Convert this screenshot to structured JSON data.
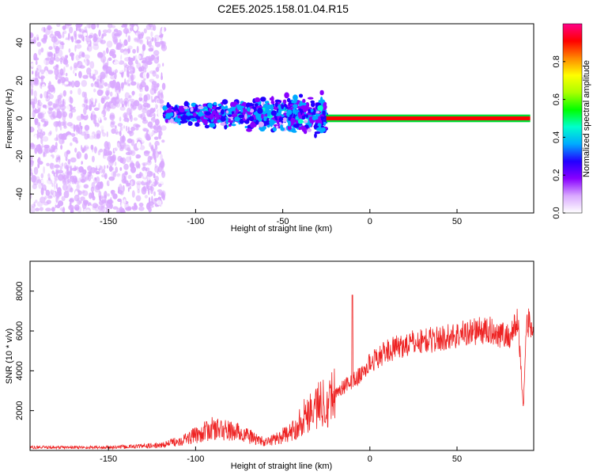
{
  "title": "C2E5.2025.158.01.04.R15",
  "chart_data": [
    {
      "type": "heatmap",
      "xlabel": "Height of straight line (km)",
      "ylabel": "Frequency (Hz)",
      "xlim": [
        -195,
        94
      ],
      "ylim": [
        -50,
        50
      ],
      "x_ticks": [
        -150,
        -100,
        -50,
        0,
        50
      ],
      "y_ticks": [
        -40,
        -20,
        0,
        20,
        40
      ],
      "colorbar": {
        "label": "Normalized spectral amplitude",
        "range": [
          0.0,
          1.0
        ],
        "ticks": [
          "0.0",
          "0.2",
          "0.4",
          "0.6",
          "0.8"
        ],
        "colors": [
          "#ffffff",
          "#d9a8ff",
          "#8800ff",
          "#2200ff",
          "#00aaff",
          "#00ffcc",
          "#00ff00",
          "#aaff00",
          "#ffff00",
          "#ff8800",
          "#ff0000",
          "#ff0088"
        ]
      },
      "regions": [
        {
          "x_range": [
            -195,
            -118
          ],
          "freq_range": [
            -50,
            50
          ],
          "amplitude": 0.1,
          "description_level": "scattered"
        },
        {
          "x_range": [
            -118,
            -25
          ],
          "freq_range": [
            -12,
            12
          ],
          "amplitude": 0.3
        },
        {
          "x_range": [
            -25,
            92
          ],
          "freq_range": [
            -1,
            1
          ],
          "amplitude": 0.95
        }
      ]
    },
    {
      "type": "line",
      "xlabel": "Height of straight line (km)",
      "ylabel": "SNR (10 * v/v)",
      "xlim": [
        -195,
        94
      ],
      "ylim": [
        0,
        9500
      ],
      "x_ticks": [
        -150,
        -100,
        0,
        50
      ],
      "y_ticks": [
        2000,
        4000,
        6000,
        8000
      ],
      "series_color": "#ee2222",
      "x": [
        -195,
        -150,
        -120,
        -105,
        -90,
        -75,
        -60,
        -45,
        -35,
        -25,
        -15,
        -5,
        0,
        10,
        20,
        30,
        40,
        50,
        60,
        70,
        80,
        85,
        88,
        90,
        94
      ],
      "y": [
        150,
        150,
        250,
        600,
        1100,
        900,
        400,
        900,
        2000,
        2500,
        3200,
        3800,
        4400,
        5000,
        5300,
        5500,
        5600,
        5800,
        6000,
        6000,
        5700,
        6500,
        2200,
        6500,
        6000
      ]
    }
  ]
}
